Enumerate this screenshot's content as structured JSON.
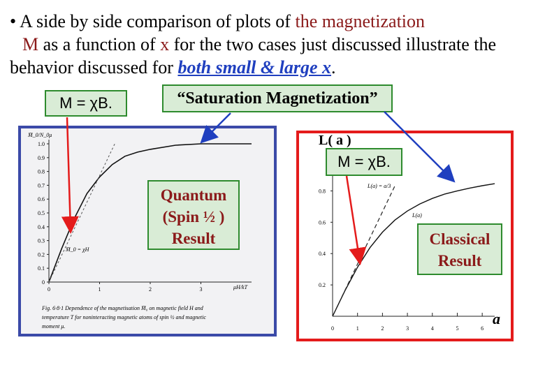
{
  "bullet": {
    "prefix": "• A side by side comparison of plots of ",
    "term1": "the magnetization",
    "term2": "M",
    "mid1": " as a function of ",
    "term3": "x",
    "mid2": " for the two cases just discussed illustrate the behavior discussed for ",
    "term4": "both small & large x",
    "suffix": "."
  },
  "labels": {
    "m_chi_b_left": "M = χB.",
    "saturation": "“Saturation Magnetization”",
    "m_chi_b_right": "M = χB.",
    "l_of_a": "L( a )",
    "quantum_line1": "Quantum",
    "quantum_line2": "(Spin ½ )",
    "quantum_line3": "Result",
    "classical_line1": "Classical",
    "classical_line2": "Result",
    "a_axis": "a"
  },
  "colors": {
    "dark_red": "#8b1a1a",
    "blue": "#1f3fbf",
    "green_border": "#2e8b2e",
    "green_fill": "#d9ecd6",
    "left_frame": "#3b4aa8",
    "right_frame": "#e41b1b"
  },
  "chart_data": [
    {
      "type": "line",
      "title": "",
      "ylabel": "M̄_0/N_0μ",
      "xlabel": "μH/kT",
      "x_ticks": [
        "0",
        "1",
        "2",
        "3"
      ],
      "y_ticks": [
        "0",
        "0.1",
        "0.2",
        "0.3",
        "0.4",
        "0.5",
        "0.6",
        "0.7",
        "0.8",
        "0.9",
        "1.0"
      ],
      "ylim": [
        0,
        1.0
      ],
      "xlim": [
        0,
        4
      ],
      "series": [
        {
          "x": [
            0,
            0.25,
            0.5,
            0.75,
            1.0,
            1.25,
            1.5,
            1.75,
            2.0,
            2.5,
            3.0,
            3.5,
            4.0
          ],
          "y": [
            0,
            0.24,
            0.46,
            0.64,
            0.76,
            0.85,
            0.91,
            0.94,
            0.96,
            0.99,
            1.0,
            1.0,
            1.0
          ]
        }
      ],
      "annotations": [
        "M̄_0 = χH"
      ],
      "caption_line1": "Fig. 6·8·1  Dependence of the magnetisation M̄₀ on magnetic field H and",
      "caption_line2": "temperature T for noninteracting magnetic atoms of spin ½ and magnetic",
      "caption_line3": "moment μ."
    },
    {
      "type": "line",
      "title": "",
      "xlabel": "",
      "ylabel": "",
      "x_ticks": [
        "0",
        "1",
        "2",
        "3",
        "4",
        "5",
        "6"
      ],
      "y_ticks": [
        "0.2",
        "0.4",
        "0.6",
        "0.8"
      ],
      "xlim": [
        0,
        6.5
      ],
      "ylim": [
        0,
        0.9
      ],
      "series": [
        {
          "name": "L(a)",
          "x": [
            0,
            0.5,
            1.0,
            1.5,
            2.0,
            2.5,
            3.0,
            3.5,
            4.0,
            4.5,
            5.0,
            5.5,
            6.0,
            6.5
          ],
          "y": [
            0,
            0.164,
            0.313,
            0.438,
            0.537,
            0.614,
            0.672,
            0.717,
            0.752,
            0.78,
            0.8,
            0.818,
            0.833,
            0.846
          ]
        },
        {
          "name": "L(a) = a/3",
          "x": [
            0,
            2.5
          ],
          "y": [
            0,
            0.833
          ]
        }
      ]
    }
  ]
}
